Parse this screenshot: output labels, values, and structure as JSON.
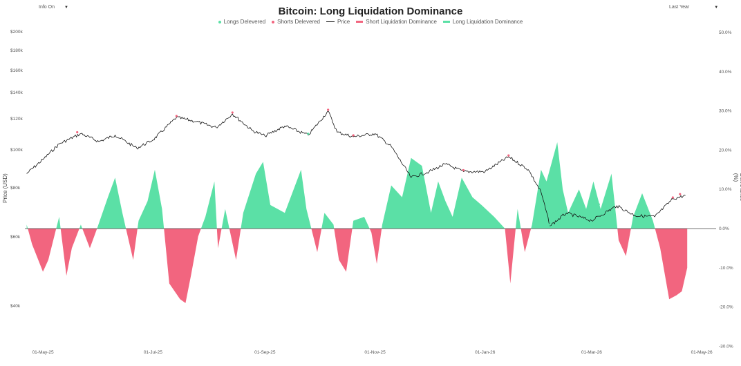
{
  "controls": {
    "info_label": "Info On",
    "range_label": "Last Year"
  },
  "colors": {
    "longs": "#5be0a6",
    "shorts": "#f2657f",
    "price": "#111111",
    "axis": "#555555"
  },
  "chart_data": {
    "type": "line",
    "title": "Bitcoin: Long Liquidation Dominance",
    "ylabel_left": "Price (USD)",
    "ylabel_right": "Dominance (%)",
    "legend": [
      "Longs Delevered",
      "Shorts Delevered",
      "Price",
      "Short Liquidation Dominance",
      "Long Liquidation Dominance"
    ],
    "legend_position": "top-center",
    "grid": false,
    "y_left_scale": "log",
    "y_left_ticks": [
      "$200k",
      "$180k",
      "$160k",
      "$140k",
      "$120k",
      "$100k",
      "$80k",
      "$60k",
      "$40k"
    ],
    "y_right_ticks": [
      "50.0%",
      "40.0%",
      "30.0%",
      "20.0%",
      "10.0%",
      "0.0%",
      "-10.0%",
      "-20.0%",
      "-30.0%"
    ],
    "y_right_range": [
      -30,
      50
    ],
    "x_ticks": [
      "01-May-25",
      "01-Jul-25",
      "01-Sep-25",
      "01-Nov-25",
      "01-Jan-26",
      "01-Mar-26",
      "01-May-26"
    ],
    "price_series": [
      [
        "2025-04-22",
        87000
      ],
      [
        "2025-05-01",
        94500
      ],
      [
        "2025-05-10",
        103500
      ],
      [
        "2025-05-22",
        110000
      ],
      [
        "2025-06-01",
        105000
      ],
      [
        "2025-06-10",
        109000
      ],
      [
        "2025-06-22",
        101000
      ],
      [
        "2025-07-01",
        106000
      ],
      [
        "2025-07-14",
        121000
      ],
      [
        "2025-07-25",
        118000
      ],
      [
        "2025-08-05",
        114000
      ],
      [
        "2025-08-14",
        123500
      ],
      [
        "2025-08-25",
        112000
      ],
      [
        "2025-09-01",
        108500
      ],
      [
        "2025-09-12",
        115000
      ],
      [
        "2025-09-25",
        109000
      ],
      [
        "2025-10-06",
        125500
      ],
      [
        "2025-10-11",
        111000
      ],
      [
        "2025-10-20",
        108000
      ],
      [
        "2025-11-01",
        110000
      ],
      [
        "2025-11-10",
        102000
      ],
      [
        "2025-11-21",
        85000
      ],
      [
        "2025-12-01",
        88000
      ],
      [
        "2025-12-10",
        92000
      ],
      [
        "2025-12-20",
        88000
      ],
      [
        "2026-01-01",
        88000
      ],
      [
        "2026-01-14",
        96000
      ],
      [
        "2026-01-25",
        89000
      ],
      [
        "2026-02-01",
        78000
      ],
      [
        "2026-02-06",
        64000
      ],
      [
        "2026-02-15",
        69000
      ],
      [
        "2026-03-01",
        66000
      ],
      [
        "2026-03-15",
        72000
      ],
      [
        "2026-03-25",
        68000
      ],
      [
        "2026-04-05",
        67500
      ],
      [
        "2026-04-15",
        75000
      ],
      [
        "2026-04-22",
        76500
      ]
    ],
    "dominance_series": [
      [
        "2025-04-22",
        1
      ],
      [
        "2025-04-25",
        -4
      ],
      [
        "2025-05-01",
        -11
      ],
      [
        "2025-05-04",
        -8
      ],
      [
        "2025-05-10",
        3
      ],
      [
        "2025-05-14",
        -12
      ],
      [
        "2025-05-17",
        -5
      ],
      [
        "2025-05-22",
        1
      ],
      [
        "2025-05-27",
        -5
      ],
      [
        "2025-05-31",
        0
      ],
      [
        "2025-06-06",
        8
      ],
      [
        "2025-06-10",
        13
      ],
      [
        "2025-06-14",
        4
      ],
      [
        "2025-06-20",
        -8
      ],
      [
        "2025-06-23",
        2
      ],
      [
        "2025-06-28",
        7
      ],
      [
        "2025-07-02",
        15
      ],
      [
        "2025-07-06",
        5
      ],
      [
        "2025-07-10",
        -14
      ],
      [
        "2025-07-16",
        -18
      ],
      [
        "2025-07-19",
        -19
      ],
      [
        "2025-07-22",
        -12
      ],
      [
        "2025-07-26",
        -2
      ],
      [
        "2025-07-30",
        3
      ],
      [
        "2025-08-04",
        12
      ],
      [
        "2025-08-06",
        -5
      ],
      [
        "2025-08-10",
        5
      ],
      [
        "2025-08-16",
        -8
      ],
      [
        "2025-08-20",
        4
      ],
      [
        "2025-08-27",
        14
      ],
      [
        "2025-08-31",
        17
      ],
      [
        "2025-09-04",
        6
      ],
      [
        "2025-09-12",
        4
      ],
      [
        "2025-09-21",
        15
      ],
      [
        "2025-09-24",
        5
      ],
      [
        "2025-09-30",
        -6
      ],
      [
        "2025-10-04",
        4
      ],
      [
        "2025-10-09",
        1
      ],
      [
        "2025-10-12",
        -8
      ],
      [
        "2025-10-16",
        -11
      ],
      [
        "2025-10-20",
        2
      ],
      [
        "2025-10-26",
        3
      ],
      [
        "2025-10-30",
        -1
      ],
      [
        "2025-11-02",
        -9
      ],
      [
        "2025-11-05",
        1
      ],
      [
        "2025-11-10",
        11
      ],
      [
        "2025-11-16",
        8
      ],
      [
        "2025-11-21",
        18
      ],
      [
        "2025-11-27",
        16
      ],
      [
        "2025-12-02",
        4
      ],
      [
        "2025-12-06",
        12
      ],
      [
        "2025-12-10",
        7
      ],
      [
        "2025-12-14",
        3
      ],
      [
        "2025-12-19",
        13
      ],
      [
        "2025-12-25",
        8
      ],
      [
        "2025-12-30",
        6
      ],
      [
        "2026-01-06",
        3
      ],
      [
        "2026-01-12",
        0
      ],
      [
        "2026-01-15",
        -14
      ],
      [
        "2026-01-19",
        5
      ],
      [
        "2026-01-23",
        -6
      ],
      [
        "2026-01-27",
        1
      ],
      [
        "2026-02-01",
        15
      ],
      [
        "2026-02-04",
        12
      ],
      [
        "2026-02-10",
        22
      ],
      [
        "2026-02-13",
        10
      ],
      [
        "2026-02-16",
        4
      ],
      [
        "2026-02-22",
        10
      ],
      [
        "2026-02-26",
        5
      ],
      [
        "2026-03-02",
        12
      ],
      [
        "2026-03-06",
        5
      ],
      [
        "2026-03-12",
        14
      ],
      [
        "2026-03-16",
        -3
      ],
      [
        "2026-03-20",
        -7
      ],
      [
        "2026-03-24",
        3
      ],
      [
        "2026-03-29",
        9
      ],
      [
        "2026-04-04",
        2
      ],
      [
        "2026-04-08",
        -5
      ],
      [
        "2026-04-13",
        -18
      ],
      [
        "2026-04-17",
        -17
      ],
      [
        "2026-04-20",
        -16
      ],
      [
        "2026-04-23",
        -10
      ]
    ]
  }
}
